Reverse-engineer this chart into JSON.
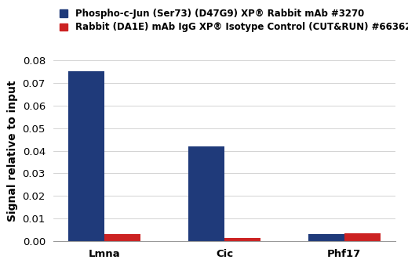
{
  "categories": [
    "Lmna",
    "Cic",
    "Phf17"
  ],
  "blue_values": [
    0.0752,
    0.042,
    0.003
  ],
  "red_values": [
    0.003,
    0.0015,
    0.0035
  ],
  "bar_color_blue": "#1f3a7a",
  "bar_color_red": "#cc2222",
  "ylabel": "Signal relative to input",
  "ylim": [
    0,
    0.08
  ],
  "yticks": [
    0,
    0.01,
    0.02,
    0.03,
    0.04,
    0.05,
    0.06,
    0.07,
    0.08
  ],
  "legend_label_blue": "Phospho-c-Jun (Ser73) (D47G9) XP® Rabbit mAb #3270",
  "legend_label_red": "Rabbit (DA1E) mAb IgG XP® Isotype Control (CUT&RUN) #66362",
  "background_color": "#ffffff",
  "bar_width": 0.3,
  "label_fontsize": 10,
  "tick_fontsize": 9.5,
  "legend_fontsize": 8.5,
  "ylabel_fontsize": 10
}
